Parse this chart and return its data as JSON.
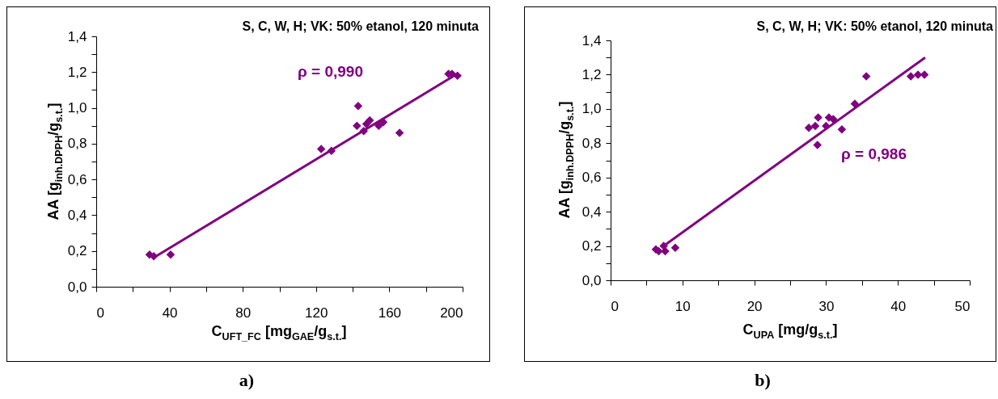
{
  "chart_data": [
    {
      "type": "scatter",
      "title": "S, C, W, H; VK: 50% etanol, 120 minuta",
      "xlabel": "C$_{UFT_FC}$ [mg$_{GAE}$/g$_{s.t.}$]",
      "ylabel": "AA [g$_{inh.DPPH}$/g$_{s.t.}$]",
      "annotations": [
        "ρ  = 0,990",
        "a)"
      ],
      "marker": "diamond",
      "line_style": "solid",
      "xlim": [
        0,
        200
      ],
      "xticks": [
        0,
        {
          "value": 20,
          "label": null
        },
        40,
        {
          "value": 60,
          "label": null
        },
        80,
        {
          "value": 100,
          "label": null
        },
        120,
        {
          "value": 140,
          "label": null
        },
        160,
        {
          "value": 180,
          "label": null
        },
        200
      ],
      "ylim": [
        0,
        1.4
      ],
      "yticks": [
        {
          "value": 0,
          "label": "0,0"
        },
        {
          "value": 0.1,
          "label": null
        },
        {
          "value": 0.2,
          "label": "0,2"
        },
        {
          "value": 0.3,
          "label": null
        },
        {
          "value": 0.4,
          "label": "0,4"
        },
        {
          "value": 0.5,
          "label": null
        },
        {
          "value": 0.6,
          "label": "0,6"
        },
        {
          "value": 0.7,
          "label": null
        },
        {
          "value": 0.8,
          "label": "0,8"
        },
        {
          "value": 0.9,
          "label": null
        },
        {
          "value": 1,
          "label": "1,0"
        },
        {
          "value": 1.1,
          "label": null
        },
        {
          "value": 1.2,
          "label": "1,2"
        },
        {
          "value": 1.3,
          "label": null
        },
        {
          "value": 1.4,
          "label": "1,4"
        }
      ],
      "series": [
        {
          "color": "#800080",
          "x": [
            29.1,
            31.4,
            40.6,
            122.8,
            128.4,
            143.0,
            142.3,
            146.0,
            149.3,
            147.5,
            154.2,
            156.7,
            165.6,
            192.3,
            194.2,
            197.2
          ],
          "values": [
            0.18,
            0.17,
            0.18,
            0.77,
            0.76,
            1.01,
            0.9,
            0.87,
            0.93,
            0.91,
            0.9,
            0.92,
            0.86,
            1.19,
            1.19,
            1.18
          ]
        },
        {
          "type": "line",
          "marker": "none",
          "color": "#800080",
          "x": [
            31,
            197
          ],
          "values": [
            0.16,
            1.19
          ]
        }
      ]
    },
    {
      "type": "scatter",
      "title": "S, C, W, H; VK: 50% etanol, 120 minuta",
      "xlabel": "C$_{UPA}$ [mg/g$_{s.t.}$]",
      "ylabel": "AA [g$_{inh.DPPH}$/g$_{s.t.}$]",
      "annotations": [
        "ρ  = 0,986",
        "b)"
      ],
      "marker": "diamond",
      "line_style": "solid",
      "xlim": [
        0,
        50
      ],
      "xticks": [
        0,
        {
          "value": 5,
          "label": null
        },
        10,
        {
          "value": 15,
          "label": null
        },
        20,
        {
          "value": 25,
          "label": null
        },
        30,
        {
          "value": 35,
          "label": null
        },
        40,
        {
          "value": 45,
          "label": null
        },
        50
      ],
      "ylim": [
        0,
        1.4
      ],
      "yticks": [
        {
          "value": 0,
          "label": "0,0"
        },
        {
          "value": 0.1,
          "label": null
        },
        {
          "value": 0.2,
          "label": "0,2"
        },
        {
          "value": 0.3,
          "label": null
        },
        {
          "value": 0.4,
          "label": "0,4"
        },
        {
          "value": 0.5,
          "label": null
        },
        {
          "value": 0.6,
          "label": "0,6"
        },
        {
          "value": 0.7,
          "label": null
        },
        {
          "value": 0.8,
          "label": "0,8"
        },
        {
          "value": 0.9,
          "label": null
        },
        {
          "value": 1,
          "label": "1,0"
        },
        {
          "value": 1.1,
          "label": null
        },
        {
          "value": 1.2,
          "label": "1,2"
        },
        {
          "value": 1.3,
          "label": null
        },
        {
          "value": 1.4,
          "label": "1,4"
        }
      ],
      "series": [
        {
          "color": "#800080",
          "x": [
            6.3,
            6.7,
            7.4,
            7.6,
            9.0,
            27.6,
            28.8,
            28.9,
            28.5,
            30.0,
            30.4,
            31.0,
            32.2,
            34.0,
            35.6,
            41.8,
            42.8,
            43.7
          ],
          "values": [
            0.18,
            0.17,
            0.2,
            0.17,
            0.19,
            0.89,
            0.79,
            0.95,
            0.9,
            0.9,
            0.95,
            0.94,
            0.88,
            1.03,
            1.19,
            1.19,
            1.2,
            1.2
          ]
        },
        {
          "type": "line",
          "marker": "none",
          "color": "#800080",
          "x": [
            7.7,
            43.8
          ],
          "values": [
            0.21,
            1.3
          ]
        }
      ]
    }
  ]
}
